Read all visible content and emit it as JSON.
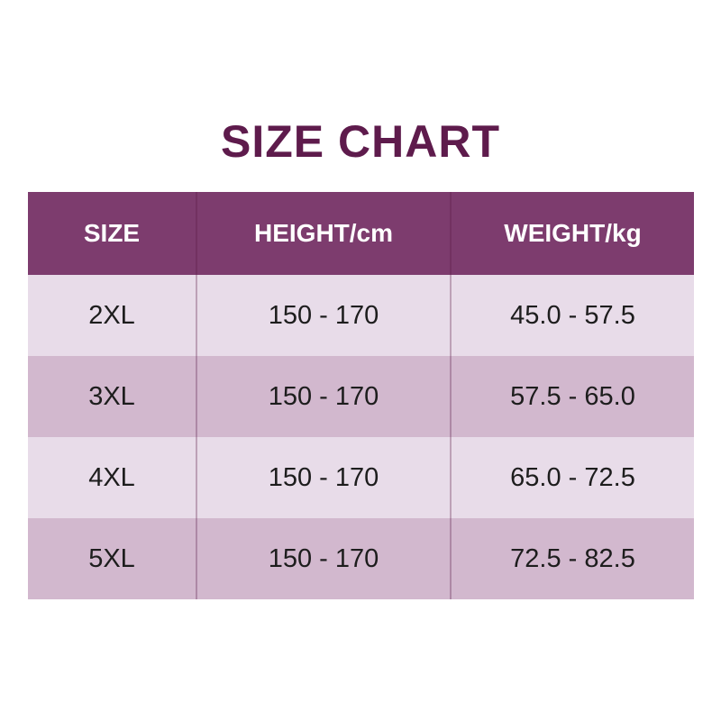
{
  "title": "SIZE CHART",
  "chart_data": {
    "type": "table",
    "title": "SIZE CHART",
    "columns": [
      "SIZE",
      "HEIGHT/cm",
      "WEIGHT/kg"
    ],
    "rows": [
      [
        "2XL",
        "150 - 170",
        "45.0 - 57.5"
      ],
      [
        "3XL",
        "150 - 170",
        "57.5 - 65.0"
      ],
      [
        "4XL",
        "150 - 170",
        "65.0 - 72.5"
      ],
      [
        "5XL",
        "150 - 170",
        "72.5 - 82.5"
      ]
    ],
    "layout_hints": {
      "header_row": true,
      "alternating_row_shading": true,
      "column_dividers": true
    }
  },
  "colors": {
    "title_text": "#5e1b4c",
    "header_bg": "#7d3c6e",
    "header_text": "#ffffff",
    "row_light_bg": "#e8dce9",
    "row_dark_bg": "#d2b8ce",
    "body_text": "#1d1d1d",
    "divider": "rgba(90,27,70,0.30)"
  }
}
